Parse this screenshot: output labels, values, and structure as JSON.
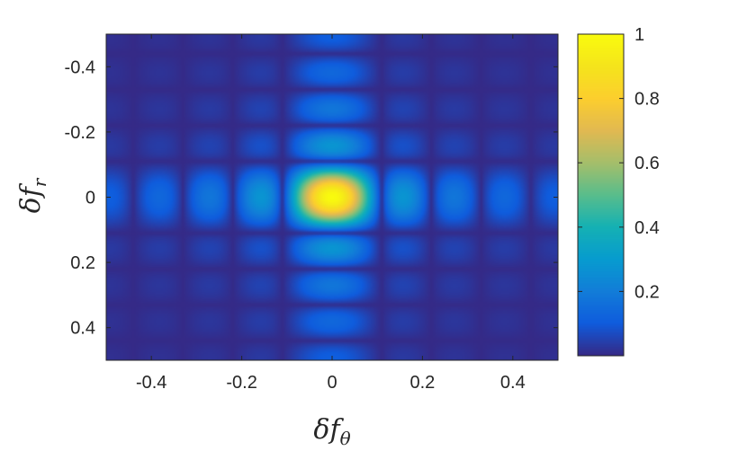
{
  "chart_data": {
    "type": "heatmap",
    "title": "",
    "xlabel": {
      "symbol": "δf",
      "subscript": "θ"
    },
    "ylabel": {
      "symbol": "δf",
      "subscript": "r"
    },
    "xlim": [
      -0.5,
      0.5
    ],
    "ylim": [
      -0.5,
      0.5
    ],
    "y_reversed": true,
    "x_ticks": [
      -0.4,
      -0.2,
      0,
      0.2,
      0.4
    ],
    "x_tick_labels": [
      "-0.4",
      "-0.2",
      "0",
      "0.2",
      "0.4"
    ],
    "y_ticks": [
      -0.4,
      -0.2,
      0,
      0.2,
      0.4
    ],
    "y_tick_labels": [
      "-0.4",
      "-0.2",
      "0",
      "0.2",
      "0.4"
    ],
    "colorbar": {
      "colormap": "parula",
      "range": [
        0,
        1
      ],
      "ticks": [
        0.2,
        0.4,
        0.6,
        0.8,
        1
      ],
      "tick_labels": [
        "0.2",
        "0.4",
        "0.6",
        "0.8",
        "1"
      ]
    },
    "function": "|sinc(x*N)|^2 * |sinc(y*N)|^2 (normalized, main lobe at origin)",
    "peak": {
      "x": 0,
      "y": 0,
      "value": 1
    },
    "x_sidelobe_centers": [
      -0.45,
      -0.31,
      -0.18,
      0.18,
      0.31,
      0.45
    ],
    "y_sidelobe_centers": [
      -0.45,
      -0.31,
      -0.2,
      0.2,
      0.31,
      0.45
    ],
    "main_lobe_halfwidth": 0.11,
    "grid": false
  }
}
